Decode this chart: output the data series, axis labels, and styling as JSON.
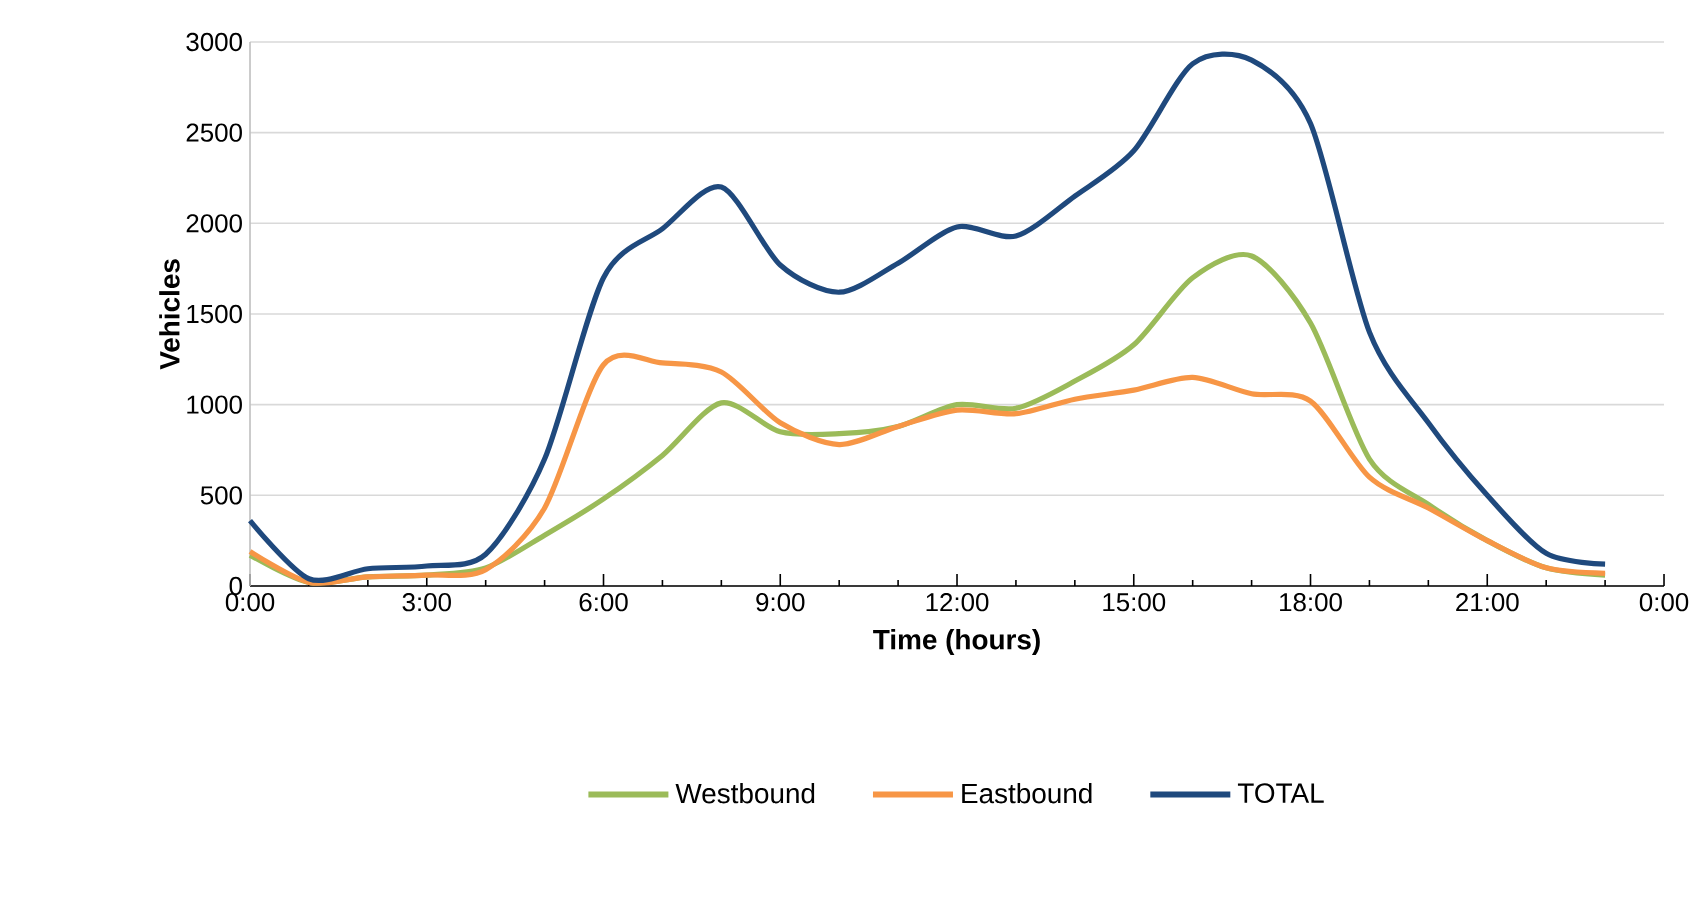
{
  "chart_data": {
    "type": "line",
    "xlabel": "Time (hours)",
    "ylabel": "Vehicles",
    "x": [
      0,
      1,
      2,
      3,
      4,
      5,
      6,
      7,
      8,
      9,
      10,
      11,
      12,
      13,
      14,
      15,
      16,
      17,
      18,
      19,
      20,
      21,
      22,
      23
    ],
    "series": [
      {
        "name": "Westbound",
        "color": "#9bbb59",
        "values": [
          170,
          20,
          50,
          60,
          100,
          280,
          480,
          720,
          1010,
          850,
          840,
          880,
          1000,
          980,
          1130,
          1330,
          1700,
          1820,
          1450,
          700,
          450,
          250,
          100,
          60
        ]
      },
      {
        "name": "Eastbound",
        "color": "#f79646",
        "values": [
          190,
          20,
          50,
          60,
          90,
          430,
          1220,
          1230,
          1180,
          900,
          780,
          880,
          970,
          950,
          1030,
          1080,
          1150,
          1060,
          1020,
          600,
          430,
          250,
          100,
          70
        ]
      },
      {
        "name": "TOTAL",
        "color": "#1f497d",
        "values": [
          360,
          40,
          95,
          110,
          175,
          700,
          1700,
          1970,
          2200,
          1770,
          1620,
          1780,
          1980,
          1930,
          2150,
          2400,
          2880,
          2900,
          2550,
          1400,
          900,
          500,
          180,
          120
        ]
      }
    ],
    "xlim": [
      0,
      24
    ],
    "xticks": [
      {
        "value": 0,
        "label": "0:00"
      },
      {
        "value": 3,
        "label": "3:00"
      },
      {
        "value": 6,
        "label": "6:00"
      },
      {
        "value": 9,
        "label": "9:00"
      },
      {
        "value": 12,
        "label": "12:00"
      },
      {
        "value": 15,
        "label": "15:00"
      },
      {
        "value": 18,
        "label": "18:00"
      },
      {
        "value": 21,
        "label": "21:00"
      },
      {
        "value": 24,
        "label": "0:00"
      }
    ],
    "ylim": [
      0,
      3000
    ],
    "yticks": [
      0,
      500,
      1000,
      1500,
      2000,
      2500,
      3000
    ],
    "grid": "y",
    "legend": "bottom",
    "marker": "none",
    "line_style": "solid"
  }
}
